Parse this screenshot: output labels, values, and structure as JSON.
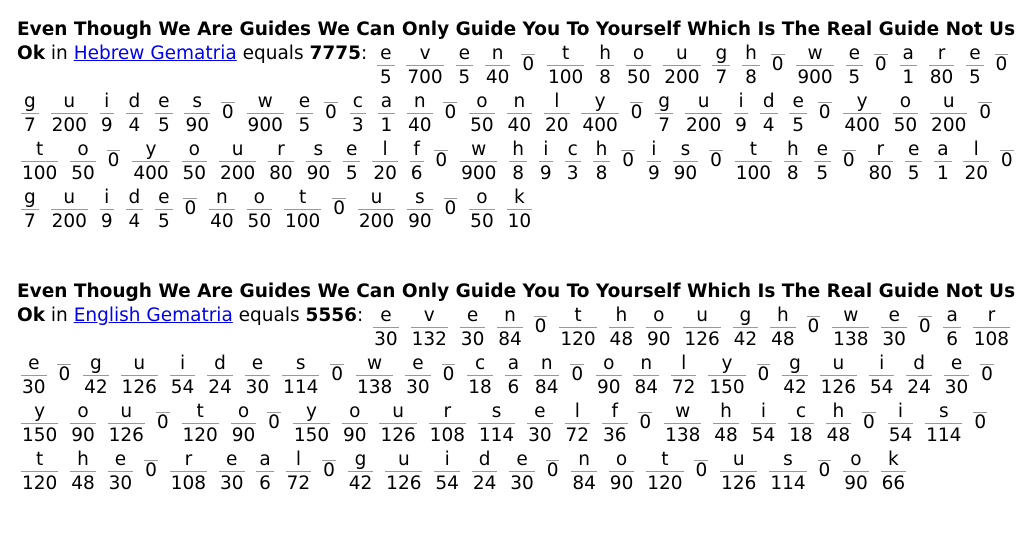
{
  "results": [
    {
      "phrase": "Even Though We Are Guides We Can Only Guide You To Yourself Which Is The Real Guide Not Us Ok",
      "in_text": "in",
      "cipher": "Hebrew Gematria",
      "equals_text": "equals",
      "total": "7775",
      "letters": "even though we are guides we can only guide you to yourself which is the real guide not us ok",
      "values": [
        5,
        700,
        5,
        40,
        0,
        100,
        8,
        50,
        200,
        7,
        8,
        0,
        900,
        5,
        0,
        1,
        80,
        5,
        0,
        7,
        200,
        9,
        4,
        5,
        90,
        0,
        900,
        5,
        0,
        3,
        1,
        40,
        0,
        50,
        40,
        20,
        400,
        0,
        7,
        200,
        9,
        4,
        5,
        0,
        400,
        50,
        200,
        0,
        100,
        50,
        0,
        400,
        50,
        200,
        80,
        90,
        5,
        20,
        6,
        0,
        900,
        8,
        9,
        3,
        8,
        0,
        9,
        90,
        0,
        100,
        8,
        5,
        0,
        80,
        5,
        1,
        20,
        0,
        7,
        200,
        9,
        4,
        5,
        0,
        40,
        50,
        100,
        0,
        200,
        90,
        0,
        50,
        10
      ]
    },
    {
      "phrase": "Even Though We Are Guides We Can Only Guide You To Yourself Which Is The Real Guide Not Us Ok",
      "in_text": "in",
      "cipher": "English Gematria",
      "equals_text": "equals",
      "total": "5556",
      "letters": "even though we are guides we can only guide you to yourself which is the real guide not us ok",
      "values": [
        30,
        132,
        30,
        84,
        0,
        120,
        48,
        90,
        126,
        42,
        48,
        0,
        138,
        30,
        0,
        6,
        108,
        30,
        0,
        42,
        126,
        54,
        24,
        30,
        114,
        0,
        138,
        30,
        0,
        18,
        6,
        84,
        0,
        90,
        84,
        72,
        150,
        0,
        42,
        126,
        54,
        24,
        30,
        0,
        150,
        90,
        126,
        0,
        120,
        90,
        0,
        150,
        90,
        126,
        108,
        114,
        30,
        72,
        36,
        0,
        138,
        48,
        54,
        18,
        48,
        0,
        54,
        114,
        0,
        120,
        48,
        30,
        0,
        108,
        30,
        6,
        72,
        0,
        42,
        126,
        54,
        24,
        30,
        0,
        84,
        90,
        120,
        0,
        126,
        114,
        0,
        90,
        66
      ]
    }
  ]
}
